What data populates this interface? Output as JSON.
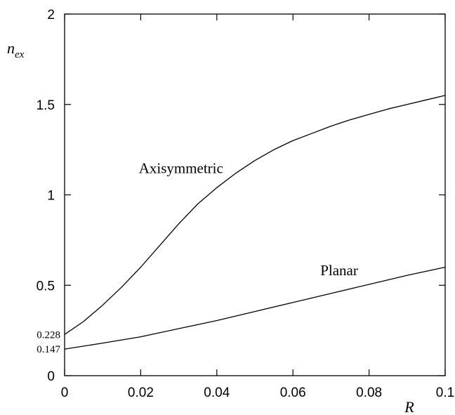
{
  "chart_data": {
    "type": "line",
    "xlabel": "R",
    "ylabel": {
      "main": "n",
      "sub": "ex"
    },
    "xlim": [
      0,
      0.1
    ],
    "ylim": [
      0,
      2
    ],
    "x_ticks": [
      0,
      0.02,
      0.04,
      0.06,
      0.08,
      0.1
    ],
    "x_tick_labels": [
      "0",
      "0.02",
      "0.04",
      "0.06",
      "0.08",
      "0.1"
    ],
    "y_ticks": [
      0,
      0.5,
      1,
      1.5,
      2
    ],
    "y_tick_labels": [
      "0",
      "0.5",
      "1",
      "1.5",
      "2"
    ],
    "special_y_labels": [
      {
        "value": 0.228,
        "text": "0.228"
      },
      {
        "value": 0.147,
        "text": "0.147"
      }
    ],
    "grid": false,
    "series": [
      {
        "name": "Axisymmetric",
        "x": [
          0,
          0.005,
          0.01,
          0.015,
          0.02,
          0.025,
          0.03,
          0.035,
          0.04,
          0.045,
          0.05,
          0.055,
          0.06,
          0.065,
          0.07,
          0.075,
          0.08,
          0.085,
          0.09,
          0.095,
          0.1
        ],
        "y": [
          0.228,
          0.3,
          0.39,
          0.49,
          0.6,
          0.72,
          0.84,
          0.95,
          1.04,
          1.12,
          1.19,
          1.25,
          1.3,
          1.34,
          1.38,
          1.415,
          1.445,
          1.475,
          1.5,
          1.525,
          1.55
        ]
      },
      {
        "name": "Planar",
        "x": [
          0,
          0.01,
          0.02,
          0.03,
          0.04,
          0.05,
          0.06,
          0.07,
          0.08,
          0.09,
          0.1
        ],
        "y": [
          0.147,
          0.18,
          0.215,
          0.26,
          0.305,
          0.355,
          0.405,
          0.455,
          0.505,
          0.555,
          0.6
        ]
      }
    ],
    "series_labels": [
      {
        "text": "Axisymmetric",
        "x": 0.0195,
        "y": 1.12
      },
      {
        "text": "Planar",
        "x": 0.0672,
        "y": 0.555
      }
    ]
  }
}
